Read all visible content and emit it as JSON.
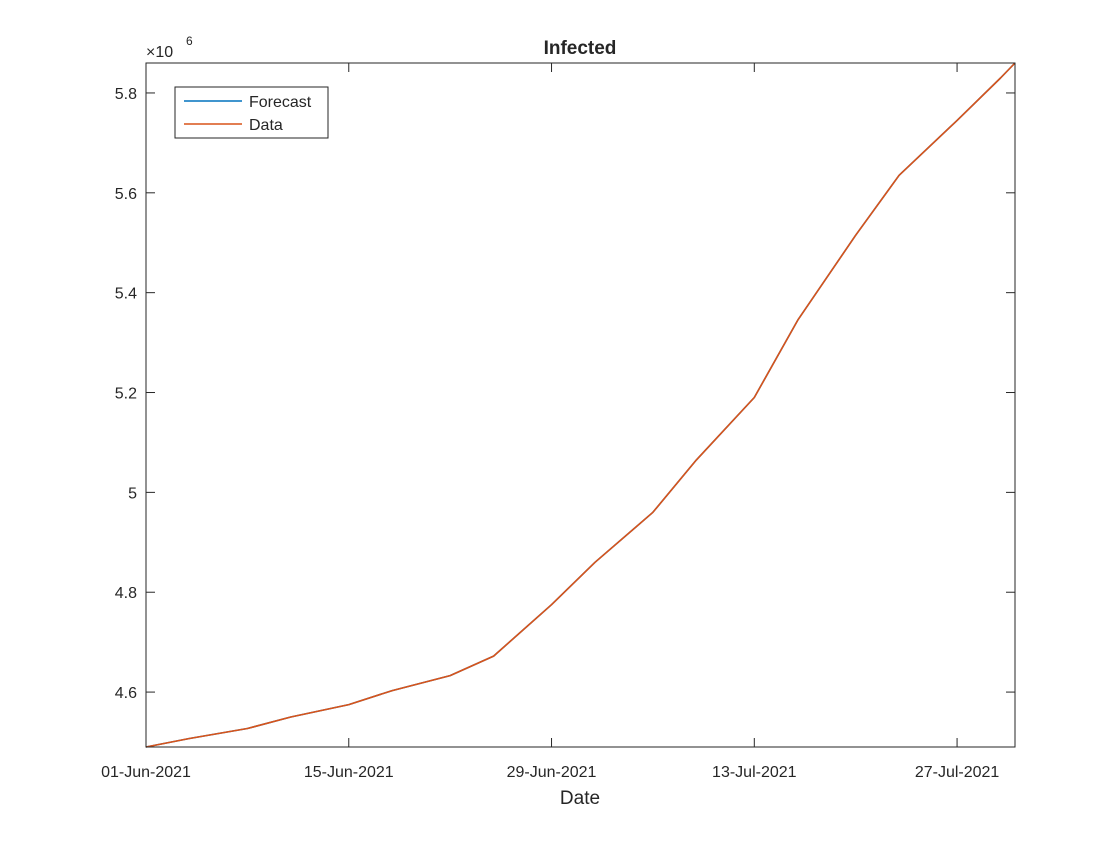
{
  "chart_data": {
    "type": "line",
    "title": "Infected",
    "xlabel": "Date",
    "ylabel": "",
    "y_exponent_label": "×10",
    "y_exponent": "6",
    "x_range": [
      "2021-06-01",
      "2021-07-31"
    ],
    "ylim": [
      4.49,
      5.86
    ],
    "x_ticks": [
      {
        "date": "2021-06-01",
        "label": "01-Jun-2021"
      },
      {
        "date": "2021-06-15",
        "label": "15-Jun-2021"
      },
      {
        "date": "2021-06-29",
        "label": "29-Jun-2021"
      },
      {
        "date": "2021-07-13",
        "label": "13-Jul-2021"
      },
      {
        "date": "2021-07-27",
        "label": "27-Jul-2021"
      }
    ],
    "y_ticks": [
      {
        "value": 4.6,
        "label": "4.6"
      },
      {
        "value": 4.8,
        "label": "4.8"
      },
      {
        "value": 5.0,
        "label": "5"
      },
      {
        "value": 5.2,
        "label": "5.2"
      },
      {
        "value": 5.4,
        "label": "5.4"
      },
      {
        "value": 5.6,
        "label": "5.6"
      },
      {
        "value": 5.8,
        "label": "5.8"
      }
    ],
    "grid": false,
    "legend_position": "top-left",
    "series": [
      {
        "name": "Forecast",
        "color": "#0072BD",
        "x": [
          "2021-06-01",
          "2021-06-04",
          "2021-06-08",
          "2021-06-11",
          "2021-06-15",
          "2021-06-18",
          "2021-06-22",
          "2021-06-25",
          "2021-06-29",
          "2021-07-02",
          "2021-07-06",
          "2021-07-09",
          "2021-07-13",
          "2021-07-16",
          "2021-07-18",
          "2021-07-20",
          "2021-07-23",
          "2021-07-27",
          "2021-07-30",
          "2021-07-31"
        ],
        "y": [
          4.49,
          4.507,
          4.527,
          4.55,
          4.575,
          4.603,
          4.633,
          4.672,
          4.775,
          4.86,
          4.96,
          5.065,
          5.19,
          5.345,
          5.43,
          5.515,
          5.635,
          5.745,
          5.83,
          5.86
        ]
      },
      {
        "name": "Data",
        "color": "#D95319",
        "x": [
          "2021-06-01",
          "2021-06-04",
          "2021-06-08",
          "2021-06-11",
          "2021-06-15",
          "2021-06-18",
          "2021-06-22",
          "2021-06-25",
          "2021-06-29",
          "2021-07-02",
          "2021-07-06",
          "2021-07-09",
          "2021-07-13",
          "2021-07-16",
          "2021-07-18",
          "2021-07-20",
          "2021-07-23",
          "2021-07-27",
          "2021-07-30",
          "2021-07-31"
        ],
        "y": [
          4.49,
          4.507,
          4.527,
          4.55,
          4.575,
          4.603,
          4.633,
          4.672,
          4.775,
          4.86,
          4.96,
          5.065,
          5.19,
          5.345,
          5.43,
          5.515,
          5.635,
          5.745,
          5.83,
          5.86
        ]
      }
    ]
  }
}
